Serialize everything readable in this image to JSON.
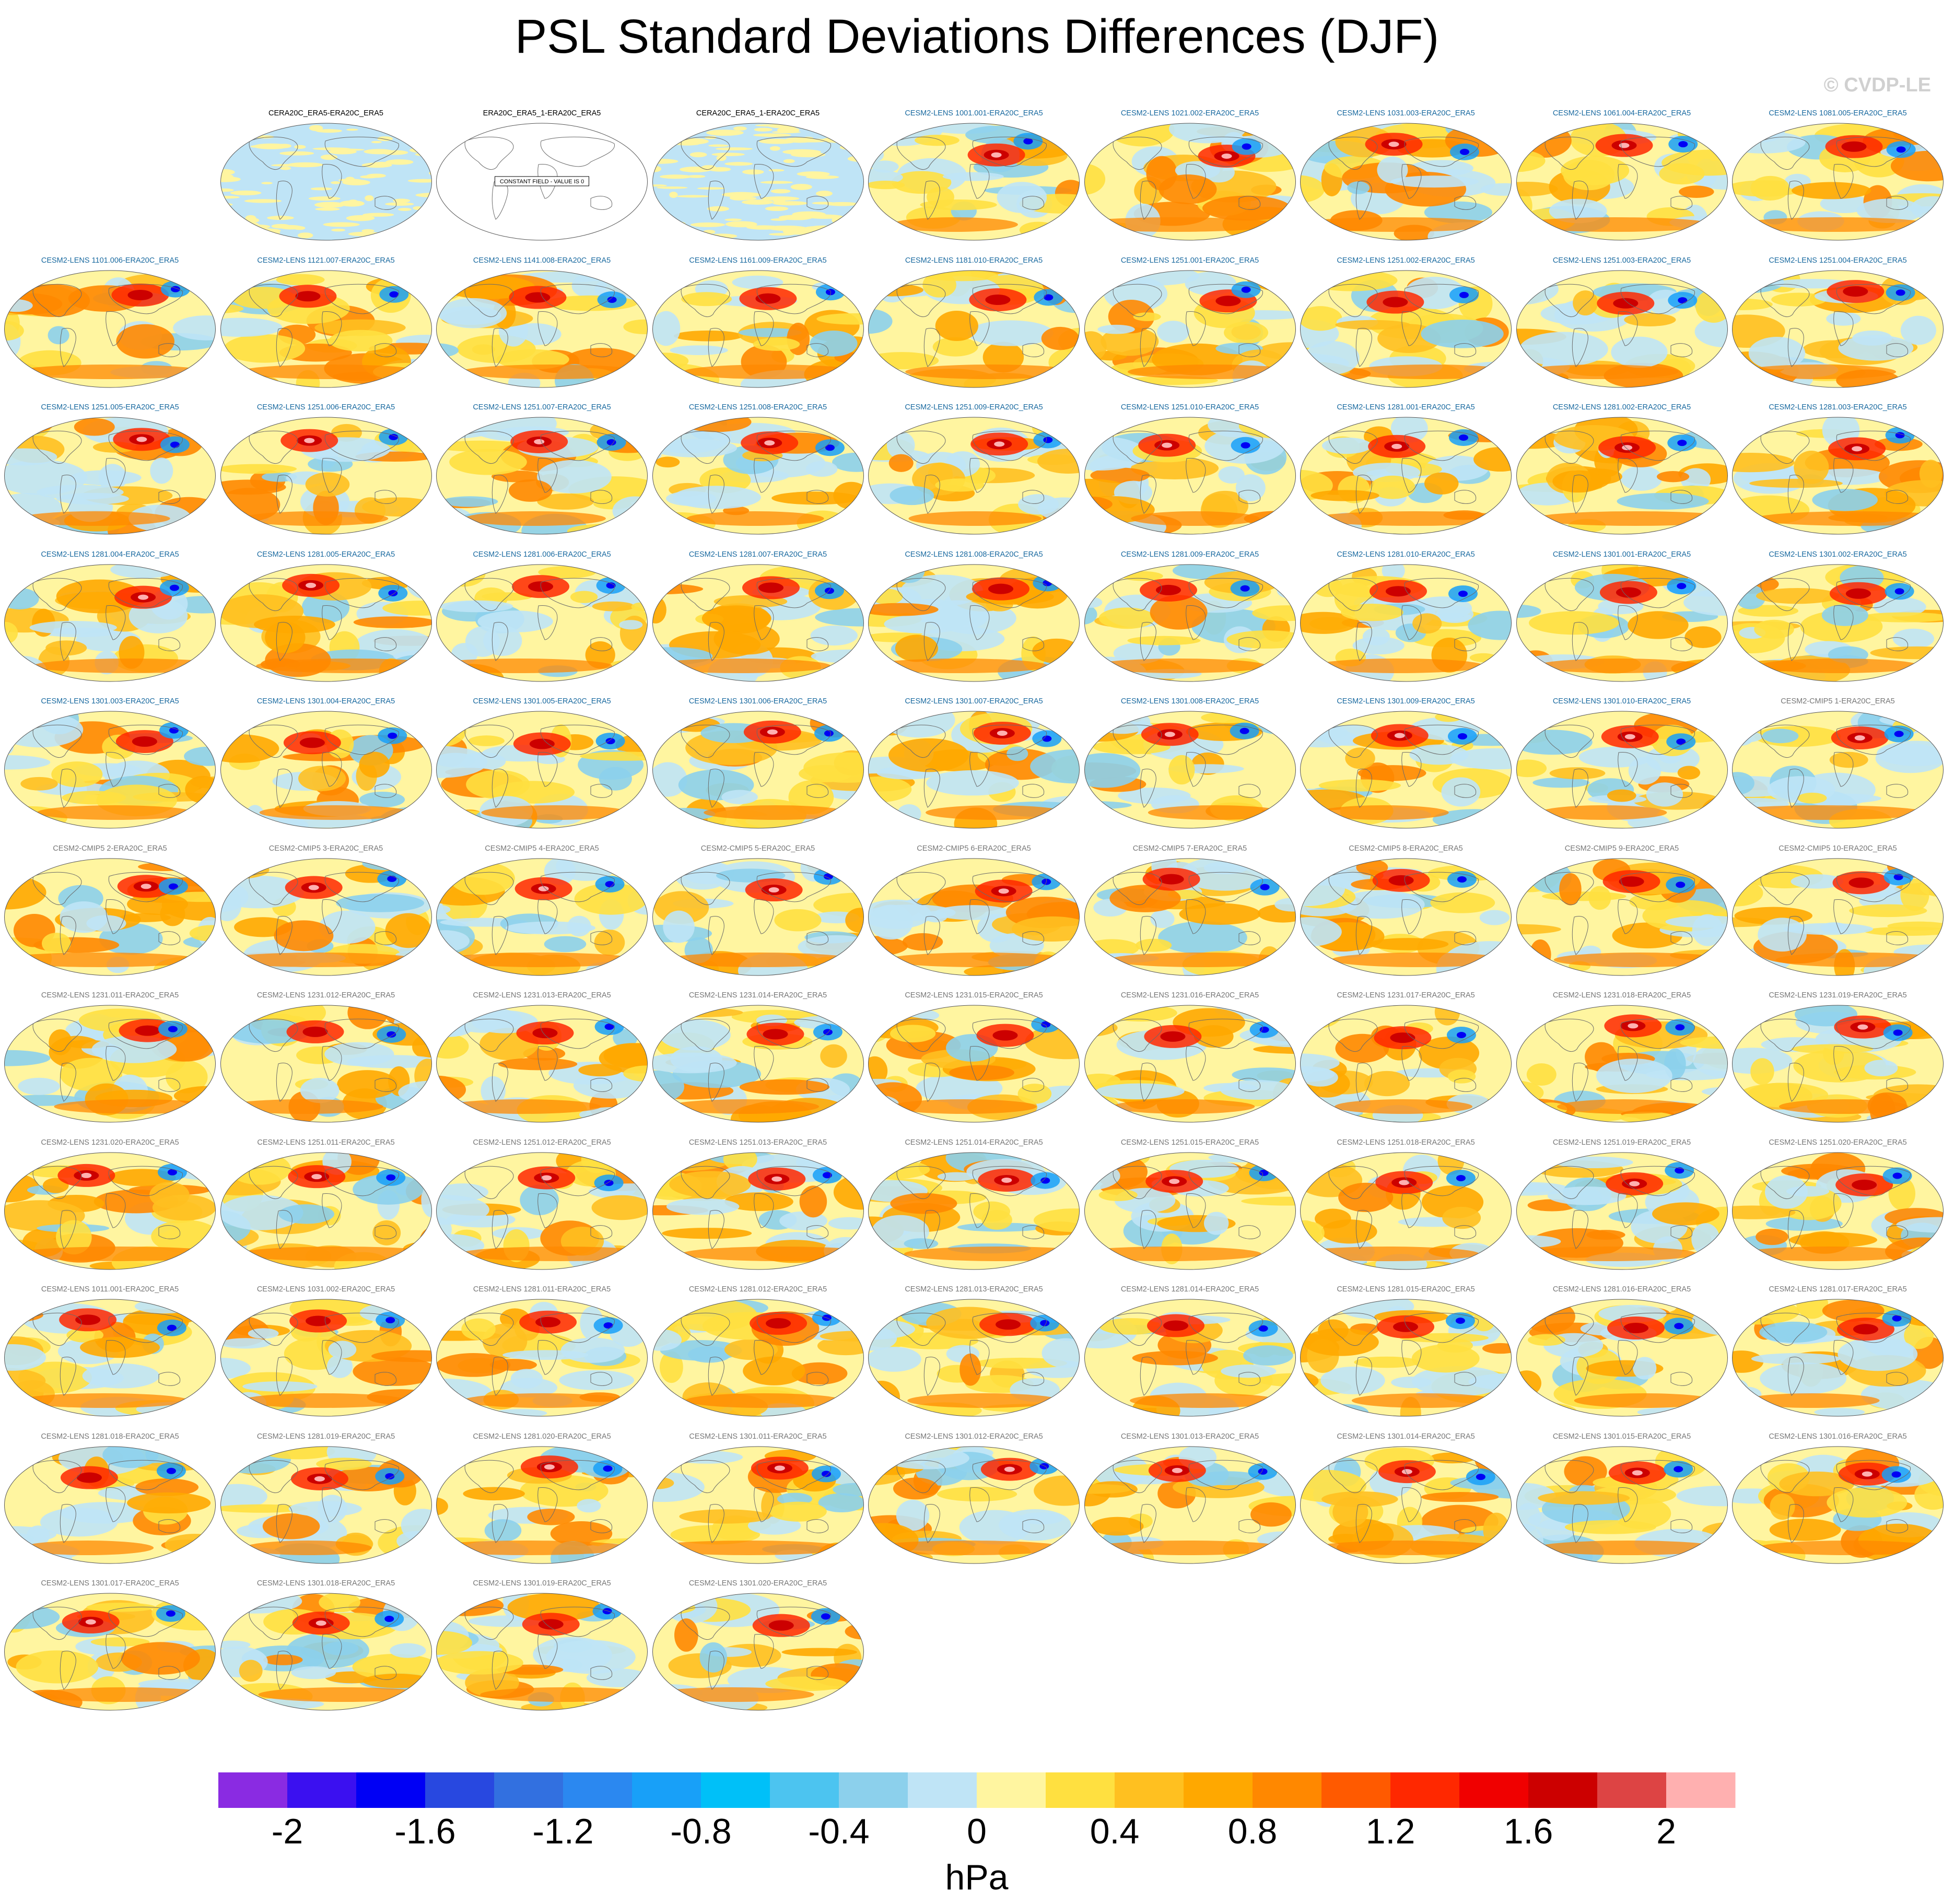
{
  "title": "PSL Standard Deviations Differences (DJF)",
  "copyright": "© CVDP-LE",
  "colors": {
    "title_black": "#000000",
    "title_blue": "#1a6aa0",
    "title_gray": "#777777",
    "copyright": "#d0d0d0"
  },
  "chart_data": {
    "type": "map-panel-grid",
    "projection": "robinson",
    "panels": [
      {
        "title": "CERA20C_ERA5-ERA20C_ERA5",
        "style": "obs"
      },
      {
        "title": "ERA20C_ERA5_1-ERA20C_ERA5",
        "style": "blank",
        "note": "CONSTANT FIELD - VALUE IS 0"
      },
      {
        "title": "CERA20C_ERA5_1-ERA20C_ERA5",
        "style": "obs"
      },
      {
        "title": "CESM2-LENS 1001.001-ERA20C_ERA5",
        "style": "lens"
      },
      {
        "title": "CESM2-LENS 1021.002-ERA20C_ERA5",
        "style": "lens"
      },
      {
        "title": "CESM2-LENS 1031.003-ERA20C_ERA5",
        "style": "lens"
      },
      {
        "title": "CESM2-LENS 1061.004-ERA20C_ERA5",
        "style": "lens"
      },
      {
        "title": "CESM2-LENS 1081.005-ERA20C_ERA5",
        "style": "lens"
      },
      {
        "title": "CESM2-LENS 1101.006-ERA20C_ERA5",
        "style": "lens"
      },
      {
        "title": "CESM2-LENS 1121.007-ERA20C_ERA5",
        "style": "lens"
      },
      {
        "title": "CESM2-LENS 1141.008-ERA20C_ERA5",
        "style": "lens"
      },
      {
        "title": "CESM2-LENS 1161.009-ERA20C_ERA5",
        "style": "lens"
      },
      {
        "title": "CESM2-LENS 1181.010-ERA20C_ERA5",
        "style": "lens"
      },
      {
        "title": "CESM2-LENS 1251.001-ERA20C_ERA5",
        "style": "lens"
      },
      {
        "title": "CESM2-LENS 1251.002-ERA20C_ERA5",
        "style": "lens"
      },
      {
        "title": "CESM2-LENS 1251.003-ERA20C_ERA5",
        "style": "lens"
      },
      {
        "title": "CESM2-LENS 1251.004-ERA20C_ERA5",
        "style": "lens"
      },
      {
        "title": "CESM2-LENS 1251.005-ERA20C_ERA5",
        "style": "lens"
      },
      {
        "title": "CESM2-LENS 1251.006-ERA20C_ERA5",
        "style": "lens"
      },
      {
        "title": "CESM2-LENS 1251.007-ERA20C_ERA5",
        "style": "lens"
      },
      {
        "title": "CESM2-LENS 1251.008-ERA20C_ERA5",
        "style": "lens"
      },
      {
        "title": "CESM2-LENS 1251.009-ERA20C_ERA5",
        "style": "lens"
      },
      {
        "title": "CESM2-LENS 1251.010-ERA20C_ERA5",
        "style": "lens"
      },
      {
        "title": "CESM2-LENS 1281.001-ERA20C_ERA5",
        "style": "lens"
      },
      {
        "title": "CESM2-LENS 1281.002-ERA20C_ERA5",
        "style": "lens"
      },
      {
        "title": "CESM2-LENS 1281.003-ERA20C_ERA5",
        "style": "lens"
      },
      {
        "title": "CESM2-LENS 1281.004-ERA20C_ERA5",
        "style": "lens"
      },
      {
        "title": "CESM2-LENS 1281.005-ERA20C_ERA5",
        "style": "lens"
      },
      {
        "title": "CESM2-LENS 1281.006-ERA20C_ERA5",
        "style": "lens"
      },
      {
        "title": "CESM2-LENS 1281.007-ERA20C_ERA5",
        "style": "lens"
      },
      {
        "title": "CESM2-LENS 1281.008-ERA20C_ERA5",
        "style": "lens"
      },
      {
        "title": "CESM2-LENS 1281.009-ERA20C_ERA5",
        "style": "lens"
      },
      {
        "title": "CESM2-LENS 1281.010-ERA20C_ERA5",
        "style": "lens"
      },
      {
        "title": "CESM2-LENS 1301.001-ERA20C_ERA5",
        "style": "lens"
      },
      {
        "title": "CESM2-LENS 1301.002-ERA20C_ERA5",
        "style": "lens"
      },
      {
        "title": "CESM2-LENS 1301.003-ERA20C_ERA5",
        "style": "lens"
      },
      {
        "title": "CESM2-LENS 1301.004-ERA20C_ERA5",
        "style": "lens"
      },
      {
        "title": "CESM2-LENS 1301.005-ERA20C_ERA5",
        "style": "lens"
      },
      {
        "title": "CESM2-LENS 1301.006-ERA20C_ERA5",
        "style": "lens"
      },
      {
        "title": "CESM2-LENS 1301.007-ERA20C_ERA5",
        "style": "lens"
      },
      {
        "title": "CESM2-LENS 1301.008-ERA20C_ERA5",
        "style": "lens"
      },
      {
        "title": "CESM2-LENS 1301.009-ERA20C_ERA5",
        "style": "lens"
      },
      {
        "title": "CESM2-LENS 1301.010-ERA20C_ERA5",
        "style": "lens"
      },
      {
        "title": "CESM2-CMIP5 1-ERA20C_ERA5",
        "style": "cmip"
      },
      {
        "title": "CESM2-CMIP5 2-ERA20C_ERA5",
        "style": "cmip"
      },
      {
        "title": "CESM2-CMIP5 3-ERA20C_ERA5",
        "style": "cmip"
      },
      {
        "title": "CESM2-CMIP5 4-ERA20C_ERA5",
        "style": "cmip"
      },
      {
        "title": "CESM2-CMIP5 5-ERA20C_ERA5",
        "style": "cmip"
      },
      {
        "title": "CESM2-CMIP5 6-ERA20C_ERA5",
        "style": "cmip"
      },
      {
        "title": "CESM2-CMIP5 7-ERA20C_ERA5",
        "style": "cmip"
      },
      {
        "title": "CESM2-CMIP5 8-ERA20C_ERA5",
        "style": "cmip"
      },
      {
        "title": "CESM2-CMIP5 9-ERA20C_ERA5",
        "style": "cmip"
      },
      {
        "title": "CESM2-CMIP5 10-ERA20C_ERA5",
        "style": "cmip"
      },
      {
        "title": "CESM2-LENS 1231.011-ERA20C_ERA5",
        "style": "smbb"
      },
      {
        "title": "CESM2-LENS 1231.012-ERA20C_ERA5",
        "style": "smbb"
      },
      {
        "title": "CESM2-LENS 1231.013-ERA20C_ERA5",
        "style": "smbb"
      },
      {
        "title": "CESM2-LENS 1231.014-ERA20C_ERA5",
        "style": "smbb"
      },
      {
        "title": "CESM2-LENS 1231.015-ERA20C_ERA5",
        "style": "smbb"
      },
      {
        "title": "CESM2-LENS 1231.016-ERA20C_ERA5",
        "style": "smbb"
      },
      {
        "title": "CESM2-LENS 1231.017-ERA20C_ERA5",
        "style": "smbb"
      },
      {
        "title": "CESM2-LENS 1231.018-ERA20C_ERA5",
        "style": "smbb"
      },
      {
        "title": "CESM2-LENS 1231.019-ERA20C_ERA5",
        "style": "smbb"
      },
      {
        "title": "CESM2-LENS 1231.020-ERA20C_ERA5",
        "style": "smbb"
      },
      {
        "title": "CESM2-LENS 1251.011-ERA20C_ERA5",
        "style": "smbb"
      },
      {
        "title": "CESM2-LENS 1251.012-ERA20C_ERA5",
        "style": "smbb"
      },
      {
        "title": "CESM2-LENS 1251.013-ERA20C_ERA5",
        "style": "smbb"
      },
      {
        "title": "CESM2-LENS 1251.014-ERA20C_ERA5",
        "style": "smbb"
      },
      {
        "title": "CESM2-LENS 1251.015-ERA20C_ERA5",
        "style": "smbb"
      },
      {
        "title": "CESM2-LENS 1251.018-ERA20C_ERA5",
        "style": "smbb"
      },
      {
        "title": "CESM2-LENS 1251.019-ERA20C_ERA5",
        "style": "smbb"
      },
      {
        "title": "CESM2-LENS 1251.020-ERA20C_ERA5",
        "style": "smbb"
      },
      {
        "title": "CESM2-LENS 1011.001-ERA20C_ERA5",
        "style": "smbb"
      },
      {
        "title": "CESM2-LENS 1031.002-ERA20C_ERA5",
        "style": "smbb"
      },
      {
        "title": "CESM2-LENS 1281.011-ERA20C_ERA5",
        "style": "smbb"
      },
      {
        "title": "CESM2-LENS 1281.012-ERA20C_ERA5",
        "style": "smbb"
      },
      {
        "title": "CESM2-LENS 1281.013-ERA20C_ERA5",
        "style": "smbb"
      },
      {
        "title": "CESM2-LENS 1281.014-ERA20C_ERA5",
        "style": "smbb"
      },
      {
        "title": "CESM2-LENS 1281.015-ERA20C_ERA5",
        "style": "smbb"
      },
      {
        "title": "CESM2-LENS 1281.016-ERA20C_ERA5",
        "style": "smbb"
      },
      {
        "title": "CESM2-LENS 1281.017-ERA20C_ERA5",
        "style": "smbb"
      },
      {
        "title": "CESM2-LENS 1281.018-ERA20C_ERA5",
        "style": "smbb"
      },
      {
        "title": "CESM2-LENS 1281.019-ERA20C_ERA5",
        "style": "smbb"
      },
      {
        "title": "CESM2-LENS 1281.020-ERA20C_ERA5",
        "style": "smbb"
      },
      {
        "title": "CESM2-LENS 1301.011-ERA20C_ERA5",
        "style": "smbb"
      },
      {
        "title": "CESM2-LENS 1301.012-ERA20C_ERA5",
        "style": "smbb"
      },
      {
        "title": "CESM2-LENS 1301.013-ERA20C_ERA5",
        "style": "smbb"
      },
      {
        "title": "CESM2-LENS 1301.014-ERA20C_ERA5",
        "style": "smbb"
      },
      {
        "title": "CESM2-LENS 1301.015-ERA20C_ERA5",
        "style": "smbb"
      },
      {
        "title": "CESM2-LENS 1301.016-ERA20C_ERA5",
        "style": "smbb"
      },
      {
        "title": "CESM2-LENS 1301.017-ERA20C_ERA5",
        "style": "smbb"
      },
      {
        "title": "CESM2-LENS 1301.018-ERA20C_ERA5",
        "style": "smbb"
      },
      {
        "title": "CESM2-LENS 1301.019-ERA20C_ERA5",
        "style": "smbb"
      },
      {
        "title": "CESM2-LENS 1301.020-ERA20C_ERA5",
        "style": "smbb"
      }
    ],
    "colorbar": {
      "unit": "hPa",
      "range": [
        -2.2,
        2.2
      ],
      "step": 0.2,
      "colors": [
        "#8a2be2",
        "#3b10f0",
        "#0000f5",
        "#2848e0",
        "#3270e0",
        "#2b88f0",
        "#18a0f8",
        "#00c0f8",
        "#4cc4f0",
        "#8cd0ec",
        "#bfe4f6",
        "#fff5a0",
        "#ffe040",
        "#ffc020",
        "#ffa800",
        "#ff8800",
        "#ff5a00",
        "#ff2800",
        "#f00000",
        "#cc0000",
        "#dd4444",
        "#ffb0b0"
      ],
      "tick_labels": [
        "-2",
        "-1.6",
        "-1.2",
        "-0.8",
        "-0.4",
        "0",
        "0.4",
        "0.8",
        "1.2",
        "1.6",
        "2"
      ],
      "tick_values": [
        -2,
        -1.6,
        -1.2,
        -0.8,
        -0.4,
        0,
        0.4,
        0.8,
        1.2,
        1.6,
        2
      ]
    }
  }
}
